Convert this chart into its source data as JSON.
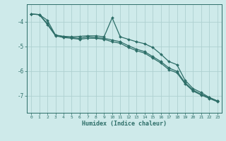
{
  "xlabel": "Humidex (Indice chaleur)",
  "background_color": "#ceeaea",
  "grid_color": "#aed0d0",
  "line_color": "#2d6e68",
  "x_values": [
    0,
    1,
    2,
    3,
    4,
    5,
    6,
    7,
    8,
    9,
    10,
    11,
    12,
    13,
    14,
    15,
    16,
    17,
    18,
    19,
    20,
    21,
    22,
    23
  ],
  "line1": [
    -3.7,
    -3.72,
    -3.95,
    -4.55,
    -4.6,
    -4.62,
    -4.6,
    -4.58,
    -4.58,
    -4.62,
    -3.85,
    -4.62,
    -4.72,
    -4.82,
    -4.9,
    -5.05,
    -5.32,
    -5.62,
    -5.75,
    -6.38,
    -6.72,
    -6.88,
    -7.08,
    -7.22
  ],
  "line2": [
    -3.7,
    -3.72,
    -4.08,
    -4.55,
    -4.62,
    -4.65,
    -4.68,
    -4.62,
    -4.65,
    -4.68,
    -4.75,
    -4.82,
    -4.98,
    -5.12,
    -5.22,
    -5.42,
    -5.62,
    -5.88,
    -6.02,
    -6.48,
    -6.78,
    -6.95,
    -7.08,
    -7.22
  ],
  "line3": [
    -3.7,
    -3.72,
    -4.12,
    -4.58,
    -4.65,
    -4.68,
    -4.72,
    -4.68,
    -4.68,
    -4.72,
    -4.82,
    -4.88,
    -5.05,
    -5.18,
    -5.28,
    -5.48,
    -5.68,
    -5.95,
    -6.08,
    -6.52,
    -6.82,
    -6.98,
    -7.12,
    -7.25
  ],
  "ylim": [
    -7.7,
    -3.3
  ],
  "xlim": [
    -0.5,
    23.5
  ],
  "yticks": [
    -7,
    -6,
    -5,
    -4
  ],
  "marker": "D",
  "markersize": 2.0,
  "linewidth": 0.9
}
